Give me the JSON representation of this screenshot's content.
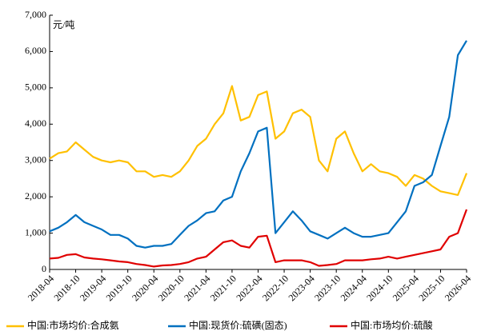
{
  "chart_data": {
    "type": "line",
    "unit_label": "元/吨",
    "categories": [
      "2018-04",
      null,
      null,
      "2018-10",
      null,
      null,
      "2019-04",
      null,
      null,
      "2019-10",
      null,
      null,
      "2020-04",
      null,
      null,
      "2020-10",
      null,
      null,
      "2021-04",
      null,
      null,
      "2021-10",
      null,
      null,
      "2022-04",
      null,
      null,
      "2022-10",
      null,
      null,
      "2023-04",
      null,
      null,
      "2023-10",
      null,
      null,
      "2024-04",
      null,
      null,
      "2024-10",
      null,
      null,
      "2025-04",
      null,
      null,
      "2025-10",
      null,
      null,
      "2026-04"
    ],
    "series": [
      {
        "name": "中国:市场均价:合成氨",
        "color": "#FFC000",
        "values": [
          3050,
          3200,
          3250,
          3500,
          3300,
          3100,
          3000,
          2950,
          3000,
          2950,
          2700,
          2700,
          2550,
          2600,
          2550,
          2700,
          3000,
          3400,
          3600,
          4000,
          4300,
          5050,
          4100,
          4200,
          4800,
          4900,
          3600,
          3800,
          4300,
          4400,
          4200,
          3000,
          2700,
          3600,
          3800,
          3200,
          2700,
          2900,
          2700,
          2650,
          2550,
          2300,
          2600,
          2500,
          2300,
          2150,
          2100,
          2050,
          2650
        ]
      },
      {
        "name": "中国:现货价:硫磺(固态)",
        "color": "#0070C0",
        "values": [
          1050,
          1150,
          1300,
          1500,
          1300,
          1200,
          1100,
          950,
          950,
          850,
          650,
          600,
          650,
          650,
          700,
          950,
          1200,
          1350,
          1550,
          1600,
          1900,
          2000,
          2700,
          3200,
          3800,
          3900,
          1000,
          1300,
          1600,
          1350,
          1050,
          950,
          850,
          1000,
          1150,
          1000,
          900,
          900,
          950,
          1000,
          1300,
          1600,
          2300,
          2400,
          2600,
          3400,
          4200,
          5900,
          6300
        ]
      },
      {
        "name": "中国:市场均价:硫酸",
        "color": "#E00000",
        "values": [
          300,
          320,
          400,
          420,
          330,
          300,
          280,
          250,
          220,
          200,
          150,
          120,
          80,
          110,
          120,
          150,
          200,
          300,
          350,
          550,
          750,
          800,
          650,
          600,
          900,
          930,
          200,
          250,
          250,
          250,
          200,
          100,
          120,
          150,
          250,
          250,
          250,
          280,
          300,
          350,
          300,
          350,
          400,
          450,
          500,
          550,
          900,
          1000,
          1650
        ]
      }
    ],
    "ylim": [
      0,
      7000
    ],
    "yticks": [
      0,
      {
        "value": 1000,
        "label": "1,000"
      },
      {
        "value": 2000,
        "label": "2,000"
      },
      {
        "value": 3000,
        "label": "3,000"
      },
      {
        "value": 4000,
        "label": "4,000"
      },
      {
        "value": 5000,
        "label": "5,000"
      },
      {
        "value": 6000,
        "label": "6,000"
      },
      {
        "value": 7000,
        "label": "7,000"
      }
    ],
    "legend": "bottom"
  }
}
